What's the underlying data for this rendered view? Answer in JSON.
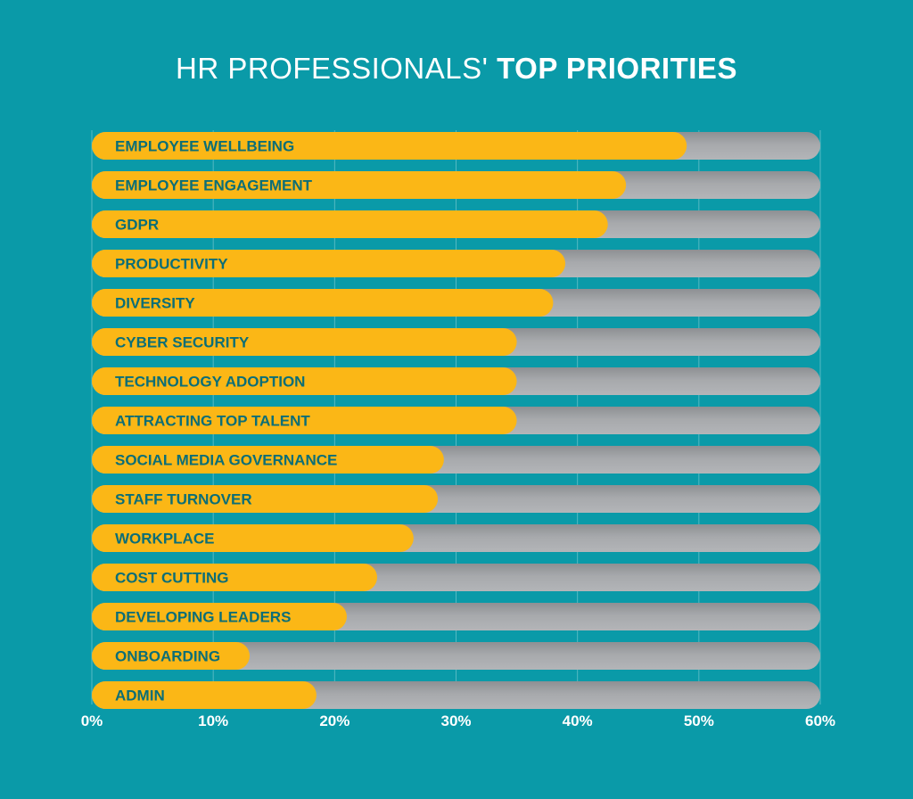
{
  "header": {
    "title_light": "HR PROFESSIONALS'",
    "title_bold": "TOP PRIORITIES"
  },
  "colors": {
    "background": "#0a9aa8",
    "bar": "#fbb716",
    "track": "#a7a9ac",
    "label": "#0b6e77",
    "grid": "#55b9c3",
    "axis_text": "#ffffff"
  },
  "chart_data": {
    "type": "bar",
    "orientation": "horizontal",
    "title": "HR PROFESSIONALS' TOP PRIORITIES",
    "categories": [
      "EMPLOYEE WELLBEING",
      "EMPLOYEE ENGAGEMENT",
      "GDPR",
      "PRODUCTIVITY",
      "DIVERSITY",
      "CYBER SECURITY",
      "TECHNOLOGY ADOPTION",
      "ATTRACTING TOP TALENT",
      "SOCIAL MEDIA GOVERNANCE",
      "STAFF TURNOVER",
      "WORKPLACE",
      "COST CUTTING",
      "DEVELOPING LEADERS",
      "ONBOARDING",
      "ADMIN"
    ],
    "values": [
      49,
      44,
      42.5,
      39,
      38,
      35,
      35,
      35,
      29,
      28.5,
      26.5,
      23.5,
      21,
      13,
      18.5
    ],
    "xlim": [
      0,
      60
    ],
    "xticks": [
      0,
      10,
      20,
      30,
      40,
      50,
      60
    ],
    "xtick_labels": [
      "0%",
      "10%",
      "20%",
      "30%",
      "40%",
      "50%",
      "60%"
    ],
    "xlabel": "",
    "ylabel": "",
    "grid": true,
    "legend": "none"
  }
}
